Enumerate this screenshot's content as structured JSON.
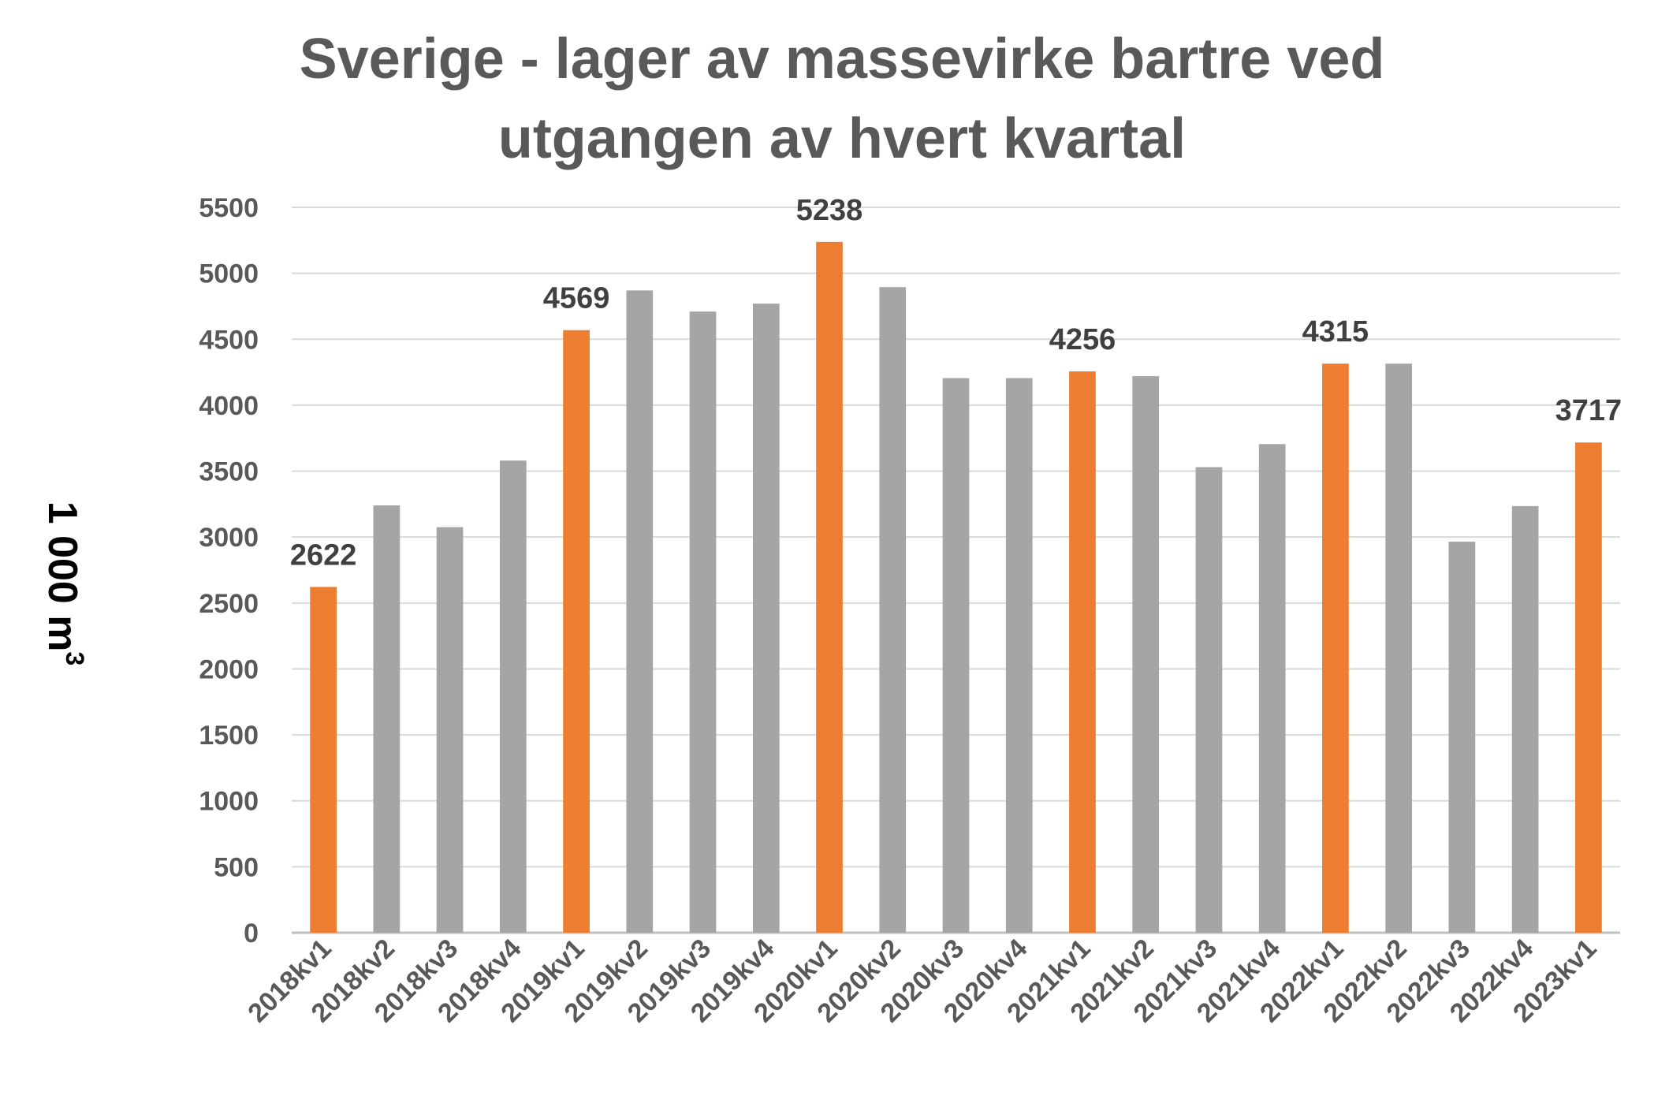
{
  "chart_data": {
    "type": "bar",
    "title_lines": [
      "Sverige - lager av massevirke bartre ved",
      "utgangen av hvert kvartal"
    ],
    "ylabel": "1 000 m",
    "ylabel_superscript": "3",
    "xlabel": "",
    "ylim": [
      0,
      5500
    ],
    "yticks": [
      "0",
      "500",
      "1000",
      "1500",
      "2000",
      "2500",
      "3000",
      "3500",
      "4000",
      "4500",
      "5000",
      "5500"
    ],
    "grid": true,
    "legend": "none",
    "categories": [
      "2018kv1",
      "2018kv2",
      "2018kv3",
      "2018kv4",
      "2019kv1",
      "2019kv2",
      "2019kv3",
      "2019kv4",
      "2020kv1",
      "2020kv2",
      "2020kv3",
      "2020kv4",
      "2021kv1",
      "2021kv2",
      "2021kv3",
      "2021kv4",
      "2022kv1",
      "2022kv2",
      "2022kv3",
      "2022kv4",
      "2023kv1"
    ],
    "values": [
      2622,
      3240,
      3075,
      3580,
      4569,
      4870,
      4710,
      4770,
      5238,
      4895,
      4205,
      4205,
      4256,
      4220,
      3530,
      3705,
      4315,
      4315,
      2965,
      3235,
      3717
    ],
    "highlighted": [
      true,
      false,
      false,
      false,
      true,
      false,
      false,
      false,
      true,
      false,
      false,
      false,
      true,
      false,
      false,
      false,
      true,
      false,
      false,
      false,
      true
    ],
    "data_labels": [
      "2622",
      "",
      "",
      "",
      "4569",
      "",
      "",
      "",
      "5238",
      "",
      "",
      "",
      "4256",
      "",
      "",
      "",
      "4315",
      "",
      "",
      "",
      "3717"
    ],
    "colors": {
      "highlight": "#ED7D31",
      "normal": "#A5A5A5",
      "grid": "#D9D9D9",
      "axis": "#BFBFBF"
    }
  }
}
